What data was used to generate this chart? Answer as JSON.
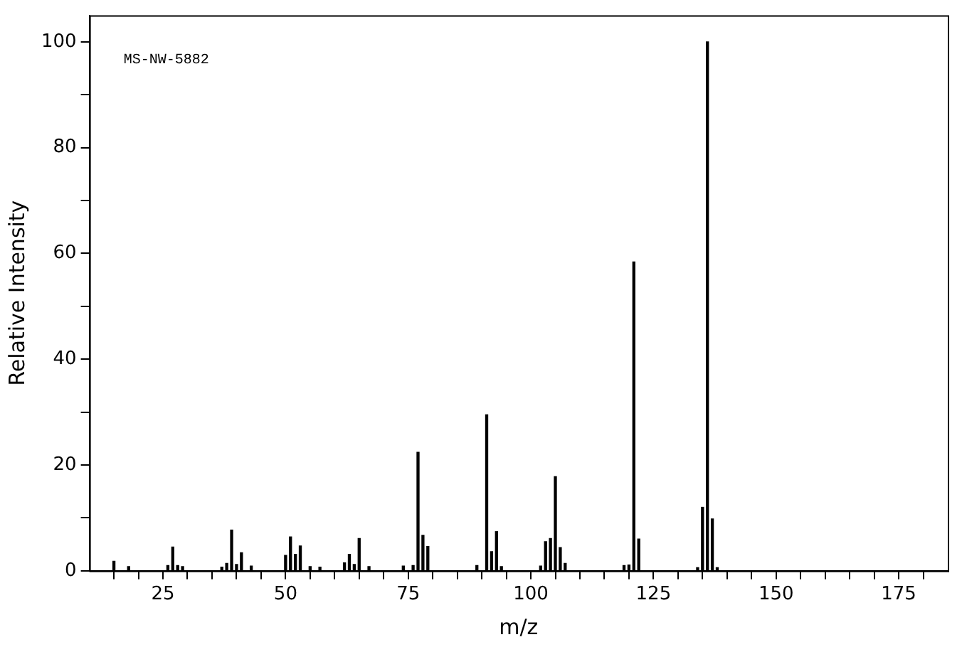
{
  "chart_data": {
    "type": "bar",
    "xlabel": "m/z",
    "ylabel": "Relative Intensity",
    "annotations": [
      "MS-NW-5882"
    ],
    "x": [
      15,
      18,
      26,
      27,
      28,
      29,
      37,
      38,
      39,
      40,
      41,
      43,
      50,
      51,
      52,
      53,
      55,
      57,
      62,
      63,
      64,
      65,
      67,
      74,
      76,
      77,
      78,
      79,
      89,
      91,
      92,
      93,
      94,
      102,
      103,
      104,
      105,
      106,
      107,
      119,
      120,
      121,
      122,
      134,
      135,
      136,
      137,
      138
    ],
    "series": [
      {
        "color": "#000000",
        "values": [
          1.8,
          0.8,
          1.0,
          4.5,
          1.0,
          0.8,
          0.7,
          1.4,
          7.7,
          1.2,
          3.4,
          0.9,
          2.9,
          6.4,
          3.1,
          4.7,
          0.8,
          0.7,
          1.5,
          3.1,
          1.2,
          6.1,
          0.8,
          0.9,
          1.0,
          22.4,
          6.7,
          4.6,
          1.0,
          29.5,
          3.6,
          7.4,
          0.8,
          0.9,
          5.5,
          6.1,
          17.8,
          4.4,
          1.4,
          1.0,
          1.1,
          58.4,
          6.0,
          0.6,
          12.0,
          100,
          9.8,
          0.6
        ]
      }
    ],
    "xlim": [
      10,
      185
    ],
    "xticks": [
      {
        "value": 15,
        "label": null
      },
      {
        "value": 20,
        "label": null
      },
      25,
      {
        "value": 30,
        "label": null
      },
      {
        "value": 35,
        "label": null
      },
      {
        "value": 40,
        "label": null
      },
      {
        "value": 45,
        "label": null
      },
      50,
      {
        "value": 55,
        "label": null
      },
      {
        "value": 60,
        "label": null
      },
      {
        "value": 65,
        "label": null
      },
      {
        "value": 70,
        "label": null
      },
      75,
      {
        "value": 80,
        "label": null
      },
      {
        "value": 85,
        "label": null
      },
      {
        "value": 90,
        "label": null
      },
      {
        "value": 95,
        "label": null
      },
      100,
      {
        "value": 105,
        "label": null
      },
      {
        "value": 110,
        "label": null
      },
      {
        "value": 115,
        "label": null
      },
      {
        "value": 120,
        "label": null
      },
      125,
      {
        "value": 130,
        "label": null
      },
      {
        "value": 135,
        "label": null
      },
      {
        "value": 140,
        "label": null
      },
      {
        "value": 145,
        "label": null
      },
      150,
      {
        "value": 155,
        "label": null
      },
      {
        "value": 160,
        "label": null
      },
      {
        "value": 165,
        "label": null
      },
      {
        "value": 170,
        "label": null
      },
      175,
      {
        "value": 180,
        "label": null
      }
    ],
    "ylim": [
      0,
      105
    ],
    "yticks": [
      0,
      {
        "value": 10,
        "label": null
      },
      20,
      {
        "value": 30,
        "label": null
      },
      40,
      {
        "value": 50,
        "label": null
      },
      60,
      {
        "value": 70,
        "label": null
      },
      80,
      {
        "value": 90,
        "label": null
      },
      100
    ],
    "legend": false
  }
}
